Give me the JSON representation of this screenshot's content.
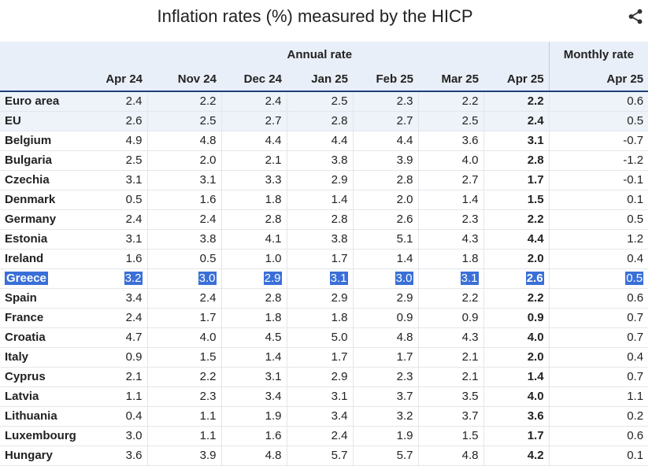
{
  "title": "Inflation rates (%) measured by the HICP",
  "share_icon": "share-icon",
  "header": {
    "annual": "Annual rate",
    "monthly": "Monthly rate",
    "columns": [
      "Apr 24",
      "Nov 24",
      "Dec 24",
      "Jan 25",
      "Feb 25",
      "Mar 25",
      "Apr 25",
      "Apr 25"
    ]
  },
  "rows": [
    {
      "name": "Euro area",
      "values": [
        "2.4",
        "2.2",
        "2.4",
        "2.5",
        "2.3",
        "2.2",
        "2.2",
        "0.6"
      ]
    },
    {
      "name": "EU",
      "values": [
        "2.6",
        "2.5",
        "2.7",
        "2.8",
        "2.7",
        "2.5",
        "2.4",
        "0.5"
      ]
    },
    {
      "name": "Belgium",
      "values": [
        "4.9",
        "4.8",
        "4.4",
        "4.4",
        "4.4",
        "3.6",
        "3.1",
        "-0.7"
      ]
    },
    {
      "name": "Bulgaria",
      "values": [
        "2.5",
        "2.0",
        "2.1",
        "3.8",
        "3.9",
        "4.0",
        "2.8",
        "-1.2"
      ]
    },
    {
      "name": "Czechia",
      "values": [
        "3.1",
        "3.1",
        "3.3",
        "2.9",
        "2.8",
        "2.7",
        "1.7",
        "-0.1"
      ]
    },
    {
      "name": "Denmark",
      "values": [
        "0.5",
        "1.6",
        "1.8",
        "1.4",
        "2.0",
        "1.4",
        "1.5",
        "0.1"
      ]
    },
    {
      "name": "Germany",
      "values": [
        "2.4",
        "2.4",
        "2.8",
        "2.8",
        "2.6",
        "2.3",
        "2.2",
        "0.5"
      ]
    },
    {
      "name": "Estonia",
      "values": [
        "3.1",
        "3.8",
        "4.1",
        "3.8",
        "5.1",
        "4.3",
        "4.4",
        "1.2"
      ]
    },
    {
      "name": "Ireland",
      "values": [
        "1.6",
        "0.5",
        "1.0",
        "1.7",
        "1.4",
        "1.8",
        "2.0",
        "0.4"
      ]
    },
    {
      "name": "Greece",
      "values": [
        "3.2",
        "3.0",
        "2.9",
        "3.1",
        "3.0",
        "3.1",
        "2.6",
        "0.5"
      ]
    },
    {
      "name": "Spain",
      "values": [
        "3.4",
        "2.4",
        "2.8",
        "2.9",
        "2.9",
        "2.2",
        "2.2",
        "0.6"
      ]
    },
    {
      "name": "France",
      "values": [
        "2.4",
        "1.7",
        "1.8",
        "1.8",
        "0.9",
        "0.9",
        "0.9",
        "0.7"
      ]
    },
    {
      "name": "Croatia",
      "values": [
        "4.7",
        "4.0",
        "4.5",
        "5.0",
        "4.8",
        "4.3",
        "4.0",
        "0.7"
      ]
    },
    {
      "name": "Italy",
      "values": [
        "0.9",
        "1.5",
        "1.4",
        "1.7",
        "1.7",
        "2.1",
        "2.0",
        "0.4"
      ]
    },
    {
      "name": "Cyprus",
      "values": [
        "2.1",
        "2.2",
        "3.1",
        "2.9",
        "2.3",
        "2.1",
        "1.4",
        "0.7"
      ]
    },
    {
      "name": "Latvia",
      "values": [
        "1.1",
        "2.3",
        "3.4",
        "3.1",
        "3.7",
        "3.5",
        "4.0",
        "1.1"
      ]
    },
    {
      "name": "Lithuania",
      "values": [
        "0.4",
        "1.1",
        "1.9",
        "3.4",
        "3.2",
        "3.7",
        "3.6",
        "0.2"
      ]
    },
    {
      "name": "Luxembourg",
      "values": [
        "3.0",
        "1.1",
        "1.6",
        "2.4",
        "1.9",
        "1.5",
        "1.7",
        "0.6"
      ]
    },
    {
      "name": "Hungary",
      "values": [
        "3.6",
        "3.9",
        "4.8",
        "5.7",
        "5.7",
        "4.8",
        "4.2",
        "0.1"
      ]
    }
  ],
  "selected_row": "Greece"
}
